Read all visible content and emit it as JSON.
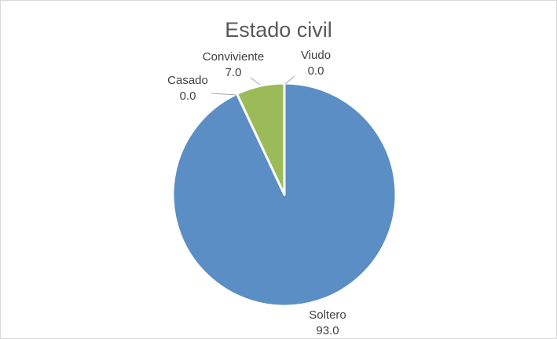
{
  "chart_data": {
    "type": "pie",
    "title": "Estado civil",
    "slices": [
      {
        "label": "Soltero",
        "value": 93.0,
        "display": "93.0",
        "color": "#5b8ec4"
      },
      {
        "label": "Casado",
        "value": 0.0,
        "display": "0.0",
        "color": "#c0504d"
      },
      {
        "label": "Conviviente",
        "value": 7.0,
        "display": "7.0",
        "color": "#9bbb59"
      },
      {
        "label": "Viudo",
        "value": 0.0,
        "display": "0.0",
        "color": "#8064a2"
      }
    ],
    "legend": "none",
    "start_angle_deg": 0,
    "direction": "clockwise"
  }
}
